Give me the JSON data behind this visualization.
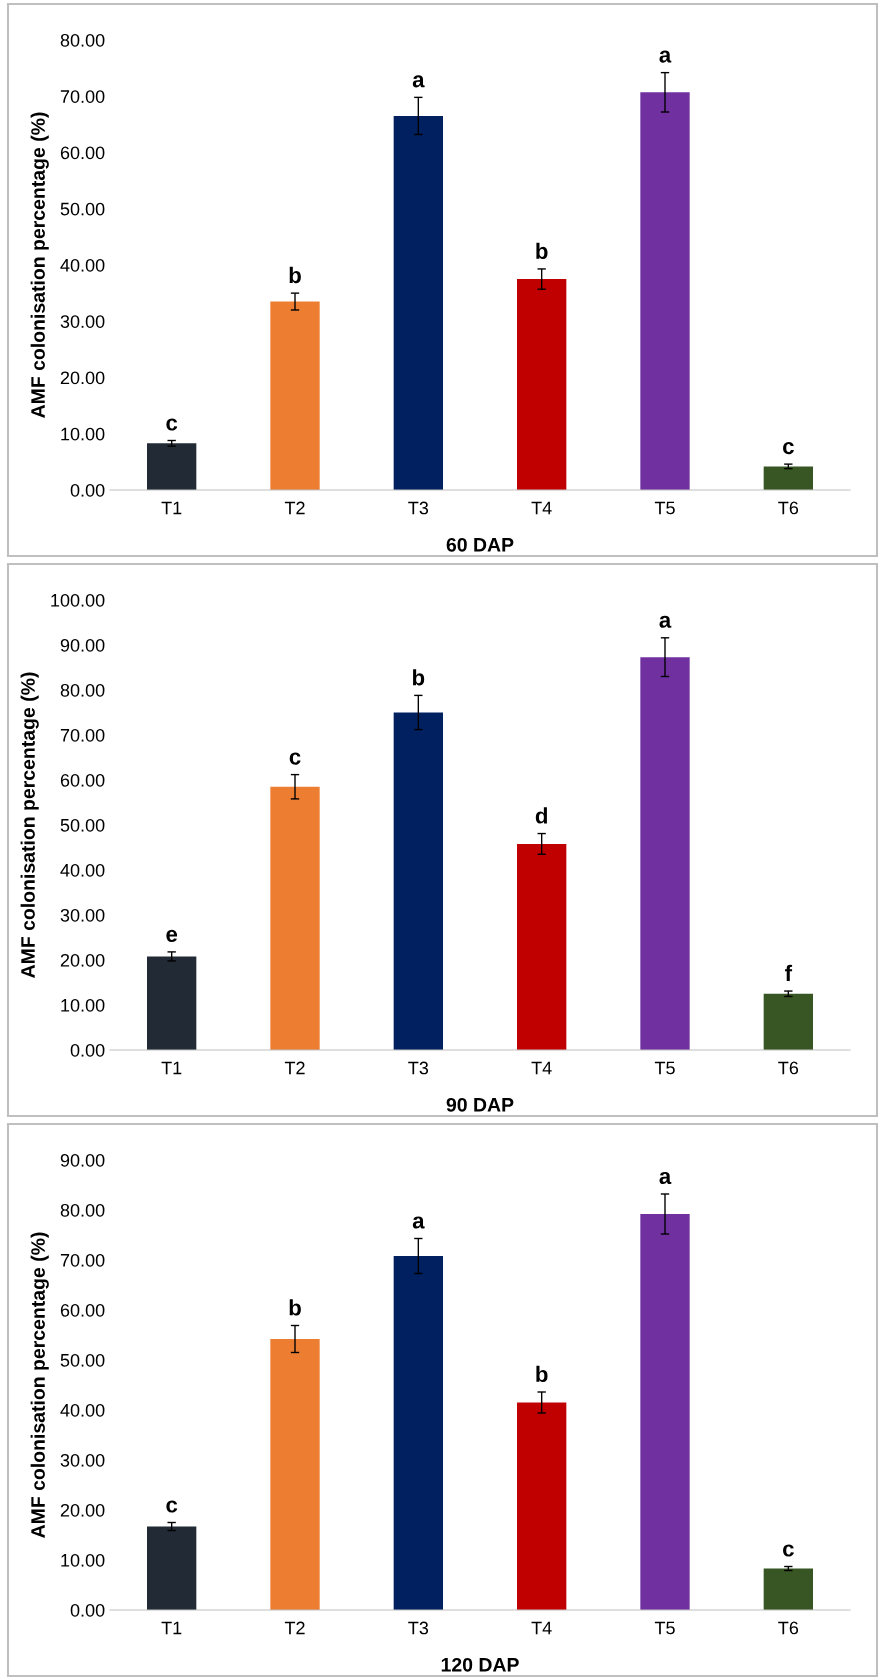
{
  "chart_data": [
    {
      "type": "bar",
      "xlabel": "60 DAP",
      "ylabel": "AMF colonisation percentage (%)",
      "categories": [
        "T1",
        "T2",
        "T3",
        "T4",
        "T5",
        "T6"
      ],
      "values": [
        8.3,
        33.5,
        66.5,
        37.5,
        70.7,
        4.2
      ],
      "errors": [
        0.5,
        1.5,
        3.3,
        1.8,
        3.5,
        0.4
      ],
      "colors": [
        "#222b35",
        "#ed7d31",
        "#002060",
        "#c00000",
        "#7030a0",
        "#375623"
      ],
      "ylim": [
        0,
        80
      ],
      "yticks": [
        {
          "value": 0,
          "label": "0.00"
        },
        {
          "value": 10,
          "label": "10.00"
        },
        {
          "value": 20,
          "label": "20.00"
        },
        {
          "value": 30,
          "label": "30.00"
        },
        {
          "value": 40,
          "label": "40.00"
        },
        {
          "value": 50,
          "label": "50.00"
        },
        {
          "value": 60,
          "label": "60.00"
        },
        {
          "value": 70,
          "label": "70.00"
        },
        {
          "value": 80,
          "label": "80.00"
        }
      ],
      "annotations": [
        {
          "text": "c",
          "x": "T1",
          "y": 8.8
        },
        {
          "text": "b",
          "x": "T2",
          "y": 35.0
        },
        {
          "text": "a",
          "x": "T3",
          "y": 69.8
        },
        {
          "text": "b",
          "x": "T4",
          "y": 39.3
        },
        {
          "text": "a",
          "x": "T5",
          "y": 74.2
        },
        {
          "text": "c",
          "x": "T6",
          "y": 4.6
        }
      ]
    },
    {
      "type": "bar",
      "xlabel": "90 DAP",
      "ylabel": "AMF colonisation percentage (%)",
      "categories": [
        "T1",
        "T2",
        "T3",
        "T4",
        "T5",
        "T6"
      ],
      "values": [
        20.8,
        58.5,
        75.0,
        45.8,
        87.3,
        12.5
      ],
      "errors": [
        1.0,
        2.7,
        3.8,
        2.3,
        4.3,
        0.6
      ],
      "colors": [
        "#222b35",
        "#ed7d31",
        "#002060",
        "#c00000",
        "#7030a0",
        "#375623"
      ],
      "ylim": [
        0,
        100
      ],
      "yticks": [
        {
          "value": 0,
          "label": "0.00"
        },
        {
          "value": 10,
          "label": "10.00"
        },
        {
          "value": 20,
          "label": "20.00"
        },
        {
          "value": 30,
          "label": "30.00"
        },
        {
          "value": 40,
          "label": "40.00"
        },
        {
          "value": 50,
          "label": "50.00"
        },
        {
          "value": 60,
          "label": "60.00"
        },
        {
          "value": 70,
          "label": "70.00"
        },
        {
          "value": 80,
          "label": "80.00"
        },
        {
          "value": 90,
          "label": "90.00"
        },
        {
          "value": 100,
          "label": "100.00"
        }
      ],
      "annotations": [
        {
          "text": "e",
          "x": "T1",
          "y": 21.8
        },
        {
          "text": "c",
          "x": "T2",
          "y": 61.2
        },
        {
          "text": "b",
          "x": "T3",
          "y": 78.8
        },
        {
          "text": "d",
          "x": "T4",
          "y": 48.1
        },
        {
          "text": "a",
          "x": "T5",
          "y": 91.6
        },
        {
          "text": "f",
          "x": "T6",
          "y": 13.1
        }
      ]
    },
    {
      "type": "bar",
      "xlabel": "120 DAP",
      "ylabel": "AMF colonisation percentage (%)",
      "categories": [
        "T1",
        "T2",
        "T3",
        "T4",
        "T5",
        "T6"
      ],
      "values": [
        16.7,
        54.2,
        70.8,
        41.5,
        79.2,
        8.3
      ],
      "errors": [
        0.8,
        2.7,
        3.5,
        2.1,
        4.0,
        0.4
      ],
      "colors": [
        "#222b35",
        "#ed7d31",
        "#002060",
        "#c00000",
        "#7030a0",
        "#375623"
      ],
      "ylim": [
        0,
        90
      ],
      "yticks": [
        {
          "value": 0,
          "label": "0.00"
        },
        {
          "value": 10,
          "label": "10.00"
        },
        {
          "value": 20,
          "label": "20.00"
        },
        {
          "value": 30,
          "label": "30.00"
        },
        {
          "value": 40,
          "label": "40.00"
        },
        {
          "value": 50,
          "label": "50.00"
        },
        {
          "value": 60,
          "label": "60.00"
        },
        {
          "value": 70,
          "label": "70.00"
        },
        {
          "value": 80,
          "label": "80.00"
        },
        {
          "value": 90,
          "label": "90.00"
        }
      ],
      "annotations": [
        {
          "text": "c",
          "x": "T1",
          "y": 17.5
        },
        {
          "text": "b",
          "x": "T2",
          "y": 56.9
        },
        {
          "text": "a",
          "x": "T3",
          "y": 74.3
        },
        {
          "text": "b",
          "x": "T4",
          "y": 43.6
        },
        {
          "text": "a",
          "x": "T5",
          "y": 83.2
        },
        {
          "text": "c",
          "x": "T6",
          "y": 8.7
        }
      ]
    }
  ]
}
